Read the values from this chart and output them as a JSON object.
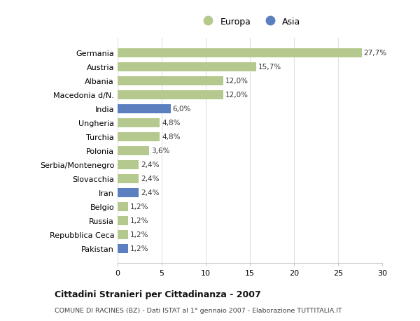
{
  "categories": [
    "Germania",
    "Austria",
    "Albania",
    "Macedonia d/N.",
    "India",
    "Ungheria",
    "Turchia",
    "Polonia",
    "Serbia/Montenegro",
    "Slovacchia",
    "Iran",
    "Belgio",
    "Russia",
    "Repubblica Ceca",
    "Pakistan"
  ],
  "values": [
    27.7,
    15.7,
    12.0,
    12.0,
    6.0,
    4.8,
    4.8,
    3.6,
    2.4,
    2.4,
    2.4,
    1.2,
    1.2,
    1.2,
    1.2
  ],
  "labels": [
    "27,7%",
    "15,7%",
    "12,0%",
    "12,0%",
    "6,0%",
    "4,8%",
    "4,8%",
    "3,6%",
    "2,4%",
    "2,4%",
    "2,4%",
    "1,2%",
    "1,2%",
    "1,2%",
    "1,2%"
  ],
  "colors": [
    "#b5c98e",
    "#b5c98e",
    "#b5c98e",
    "#b5c98e",
    "#5b7fbf",
    "#b5c98e",
    "#b5c98e",
    "#b5c98e",
    "#b5c98e",
    "#b5c98e",
    "#5b7fbf",
    "#b5c98e",
    "#b5c98e",
    "#b5c98e",
    "#5b7fbf"
  ],
  "europa_color": "#b5c98e",
  "asia_color": "#5b7fbf",
  "background_color": "#ffffff",
  "title": "Cittadini Stranieri per Cittadinanza - 2007",
  "subtitle": "COMUNE DI RACINES (BZ) - Dati ISTAT al 1° gennaio 2007 - Elaborazione TUTTITALIA.IT",
  "xlim": [
    0,
    30
  ],
  "xticks": [
    0,
    5,
    10,
    15,
    20,
    25,
    30
  ],
  "legend_europa": "Europa",
  "legend_asia": "Asia",
  "bar_height": 0.65
}
